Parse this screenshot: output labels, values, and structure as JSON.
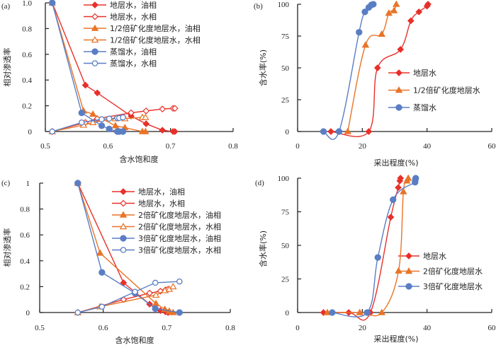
{
  "colors": {
    "red": "#e8302a",
    "orange": "#e87428",
    "blue": "#5a7ec4"
  },
  "chart_data": [
    {
      "id": "a",
      "panel_label": "(a)",
      "type": "line",
      "xlabel": "含水饱和度",
      "ylabel": "相对渗透率",
      "xlim": [
        0.5,
        0.8
      ],
      "ylim": [
        0,
        1.0
      ],
      "xticks": [
        "0.5",
        "0.6",
        "0.7",
        "0.8"
      ],
      "xtick_values": [
        0.5,
        0.6,
        0.7,
        0.8
      ],
      "yticks": [
        "0",
        "0.2",
        "0.4",
        "0.6",
        "0.8",
        "1.0"
      ],
      "ytick_values": [
        0,
        0.2,
        0.4,
        0.6,
        0.8,
        1.0
      ],
      "legend_position": "top-right",
      "series": [
        {
          "name": "地层水，油相",
          "color": "red",
          "marker": "diamond-filled",
          "x": [
            0.511,
            0.564,
            0.583,
            0.637,
            0.661,
            0.687,
            0.704,
            0.707
          ],
          "y": [
            1.0,
            0.36,
            0.3,
            0.12,
            0.06,
            0.01,
            0.0,
            0.0
          ]
        },
        {
          "name": "地层水，水相",
          "color": "red",
          "marker": "diamond-open",
          "x": [
            0.511,
            0.564,
            0.583,
            0.637,
            0.661,
            0.687,
            0.704,
            0.707
          ],
          "y": [
            0.0,
            0.07,
            0.1,
            0.145,
            0.16,
            0.175,
            0.18,
            0.18
          ]
        },
        {
          "name": "1/2倍矿化度地层水，油相",
          "color": "orange",
          "marker": "triangle-filled",
          "x": [
            0.511,
            0.561,
            0.576,
            0.612,
            0.627,
            0.655,
            0.66
          ],
          "y": [
            1.0,
            0.16,
            0.135,
            0.045,
            0.03,
            0.0,
            0.0
          ]
        },
        {
          "name": "1/2倍矿化度地层水，水相",
          "color": "orange",
          "marker": "triangle-open",
          "x": [
            0.511,
            0.561,
            0.576,
            0.612,
            0.627,
            0.655,
            0.66
          ],
          "y": [
            0.0,
            0.05,
            0.07,
            0.1,
            0.1,
            0.11,
            0.11
          ]
        },
        {
          "name": "蒸馏水，油相",
          "color": "blue",
          "marker": "circle-filled",
          "x": [
            0.511,
            0.558,
            0.59,
            0.602,
            0.615,
            0.618,
            0.624
          ],
          "y": [
            1.0,
            0.145,
            0.045,
            0.02,
            0.0,
            0.0,
            0.0
          ]
        },
        {
          "name": "蒸馏水，水相",
          "color": "blue",
          "marker": "circle-open",
          "x": [
            0.511,
            0.558,
            0.59,
            0.602,
            0.615,
            0.618,
            0.624
          ],
          "y": [
            0.0,
            0.07,
            0.095,
            0.1,
            0.105,
            0.105,
            0.11
          ]
        }
      ]
    },
    {
      "id": "b",
      "panel_label": "(b)",
      "type": "line",
      "xlabel": "采出程度(%)",
      "ylabel": "含水率(%)",
      "xlim": [
        0,
        60
      ],
      "ylim": [
        0,
        100
      ],
      "xticks": [
        "0",
        "20",
        "40",
        "60"
      ],
      "xtick_values": [
        0,
        20,
        40,
        60
      ],
      "yticks": [
        "0",
        "25",
        "50",
        "75",
        "100"
      ],
      "ytick_values": [
        0,
        25,
        50,
        75,
        100
      ],
      "legend_position": "center-right",
      "series": [
        {
          "name": "地层水",
          "color": "red",
          "marker": "diamond-filled",
          "x": [
            10.3,
            22.0,
            24.7,
            31.8,
            35.0,
            37.5,
            40.0,
            40.3
          ],
          "y": [
            0,
            0,
            50,
            64.5,
            87,
            94,
            98.5,
            100
          ]
        },
        {
          "name": "1/2倍矿化度地层水",
          "color": "orange",
          "marker": "triangle-filled",
          "x": [
            15.5,
            21.0,
            26.0,
            28.2,
            29.8,
            30.5
          ],
          "y": [
            0,
            68,
            76.5,
            93,
            95,
            100
          ]
        },
        {
          "name": "蒸馏水",
          "color": "blue",
          "marker": "circle-filled",
          "x": [
            8.0,
            12.8,
            19.0,
            20.8,
            22.0,
            22.8,
            23.4
          ],
          "y": [
            0,
            0,
            78,
            94,
            97.5,
            99.5,
            100
          ]
        }
      ]
    },
    {
      "id": "c",
      "panel_label": "(c)",
      "type": "line",
      "xlabel": "含水饱和度",
      "ylabel": "相对渗透率",
      "xlim": [
        0.5,
        0.8
      ],
      "ylim": [
        0,
        1
      ],
      "xticks": [
        "0.5",
        "0.6",
        "0.7",
        "0.8"
      ],
      "xtick_values": [
        0.5,
        0.6,
        0.7,
        0.8
      ],
      "yticks": [
        "0",
        "0.2",
        "0.4",
        "0.6",
        "0.8",
        "1"
      ],
      "ytick_values": [
        0,
        0.2,
        0.4,
        0.6,
        0.8,
        1.0
      ],
      "legend_position": "top-right",
      "series": [
        {
          "name": "地层水，油相",
          "color": "red",
          "marker": "diamond-filled",
          "x": [
            0.56,
            0.632,
            0.673,
            0.69,
            0.698,
            0.702
          ],
          "y": [
            1.0,
            0.23,
            0.065,
            0.015,
            0.005,
            0.0
          ]
        },
        {
          "name": "地层水，水相",
          "color": "red",
          "marker": "diamond-open",
          "x": [
            0.56,
            0.632,
            0.673,
            0.69,
            0.698,
            0.702
          ],
          "y": [
            0.0,
            0.1,
            0.15,
            0.165,
            0.175,
            0.18
          ]
        },
        {
          "name": "2倍矿化度地层水，油相",
          "color": "orange",
          "marker": "triangle-filled",
          "x": [
            0.56,
            0.595,
            0.683,
            0.697,
            0.704,
            0.71
          ],
          "y": [
            1.0,
            0.46,
            0.07,
            0.025,
            0.01,
            0.0
          ]
        },
        {
          "name": "2倍矿化度地层水，水相",
          "color": "orange",
          "marker": "triangle-open",
          "x": [
            0.56,
            0.595,
            0.683,
            0.697,
            0.704,
            0.71
          ],
          "y": [
            0.0,
            0.045,
            0.135,
            0.17,
            0.18,
            0.2
          ]
        },
        {
          "name": "3倍矿化度地层水，油相",
          "color": "blue",
          "marker": "circle-filled",
          "x": [
            0.56,
            0.598,
            0.65,
            0.682,
            0.72
          ],
          "y": [
            1.0,
            0.31,
            0.15,
            0.03,
            0.0
          ]
        },
        {
          "name": "3倍矿化度地层水，水相",
          "color": "blue",
          "marker": "circle-open",
          "x": [
            0.56,
            0.598,
            0.65,
            0.682,
            0.72
          ],
          "y": [
            0.0,
            0.045,
            0.16,
            0.23,
            0.24
          ]
        }
      ]
    },
    {
      "id": "d",
      "panel_label": "(d)",
      "type": "line",
      "xlabel": "采出程度(%)",
      "ylabel": "含水率(%)",
      "xlim": [
        0,
        60
      ],
      "ylim": [
        0,
        100
      ],
      "xticks": [
        "0",
        "20",
        "40",
        "60"
      ],
      "xtick_values": [
        0,
        20,
        40,
        60
      ],
      "yticks": [
        "0",
        "25",
        "50",
        "75",
        "100"
      ],
      "ytick_values": [
        0,
        25,
        50,
        75,
        100
      ],
      "legend_position": "center-right",
      "series": [
        {
          "name": "地层水",
          "color": "red",
          "marker": "diamond-filled",
          "x": [
            8.0,
            15.8,
            22.5,
            28.8,
            31.1,
            31.6,
            31.8
          ],
          "y": [
            0,
            0,
            0,
            71,
            93,
            98,
            100
          ]
        },
        {
          "name": "2倍矿化度地层水",
          "color": "orange",
          "marker": "triangle-filled",
          "x": [
            9.2,
            19.2,
            26.0,
            31.2,
            32.7,
            33.8,
            34.2
          ],
          "y": [
            0,
            0,
            0,
            31,
            90,
            98,
            100
          ]
        },
        {
          "name": "3倍矿化度地层水",
          "color": "blue",
          "marker": "circle-filled",
          "x": [
            10.7,
            21.5,
            24.8,
            29.5,
            36.3,
            36.4,
            36.5
          ],
          "y": [
            0,
            0,
            41,
            84,
            97,
            99,
            100
          ]
        }
      ]
    }
  ]
}
